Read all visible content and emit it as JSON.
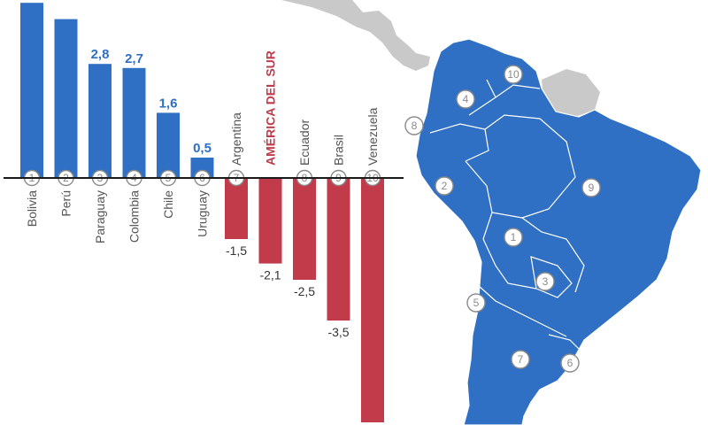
{
  "chart_data": {
    "type": "bar",
    "categories": [
      "Bolivia",
      "Perú",
      "Paraguay",
      "Colombia",
      "Chile",
      "Uruguay",
      "Argentina",
      "AMÉRICA DEL SUR",
      "Ecuador",
      "Brasil",
      "Venezuela"
    ],
    "values": [
      4.3,
      3.9,
      2.8,
      2.7,
      1.6,
      0.5,
      -1.5,
      -2.1,
      -2.5,
      -3.5,
      -6.0
    ],
    "value_labels": [
      "",
      "",
      "2,8",
      "2,7",
      "1,6",
      "0,5",
      "-1,5",
      "-2,1",
      "-2,5",
      "-3,5",
      ""
    ],
    "numbers": [
      "1",
      "2",
      "3",
      "4",
      "5",
      "6",
      "7",
      "",
      "8",
      "9",
      "10"
    ],
    "highlight": "AMÉRICA DEL SUR",
    "title": "",
    "xlabel": "",
    "ylabel": "",
    "ylim": [
      -6.0,
      4.3
    ],
    "grid": false,
    "legend": "none"
  },
  "map_labels": [
    "1",
    "2",
    "3",
    "4",
    "5",
    "6",
    "7",
    "8",
    "9",
    "10"
  ],
  "colors": {
    "positive": "#2f6fc4",
    "negative": "#c23b4b",
    "map_land": "#2f6fc4",
    "map_other": "#c9c9c9",
    "circle_stroke": "#8a8a8a"
  }
}
